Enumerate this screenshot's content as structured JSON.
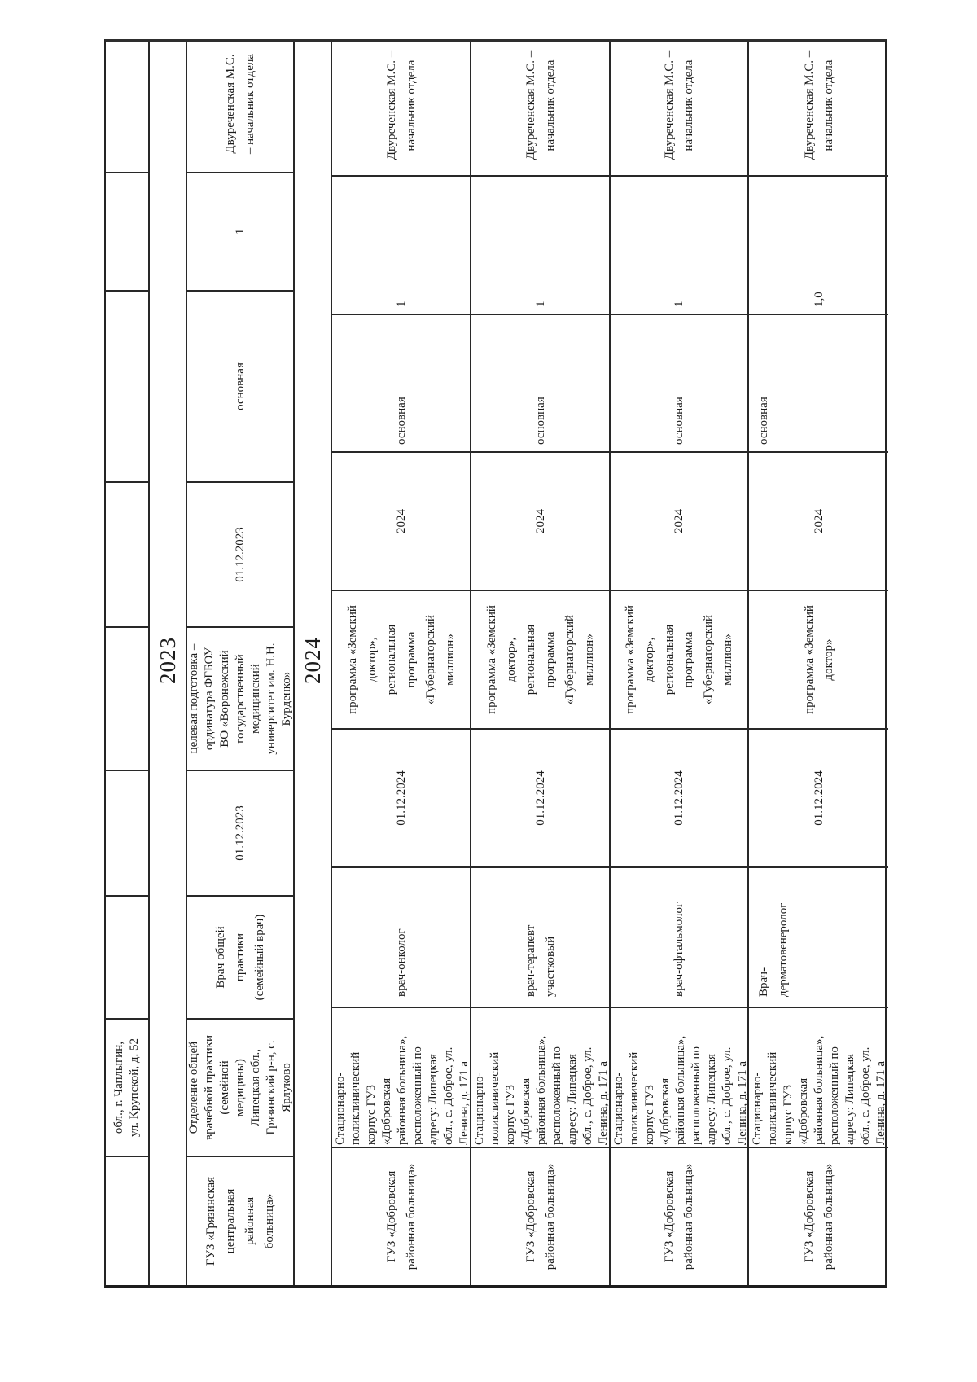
{
  "document": {
    "kind": "scanned rotated vacancy table",
    "orientation": "rotated 90deg ccw, text reads bottom to top",
    "text_color": "#1d1d1d",
    "line_color": "#282828",
    "background": "#ffffff"
  },
  "table": {
    "rows": [
      {
        "type": "data-continuation",
        "cells": {
          "org": "",
          "department": "обл., г. Чаплыгин,\nул. Крупской, д. 52",
          "position": "",
          "vacancy_date": "",
          "program": "",
          "fill_period": "",
          "vacancy_type": "",
          "rate": "",
          "responsible": ""
        }
      },
      {
        "type": "year-header",
        "label": "2023"
      },
      {
        "type": "data",
        "cells": {
          "org": "ГУЗ «Грязинская\nцентральная\nрайонная\nбольница»",
          "department": "Отделение общей\nврачебной практики\n(семейной\nмедицины)\nЛипецкая обл.,\nГрязинский р-н, с.\nЯрлуково",
          "position": "Врач общей\nпрактики\n(семейный врач)",
          "vacancy_date": "01.12.2023",
          "program": "целевая подготовка –\nординатура ФГБОУ\nВО «Воронежский\nгосударственный\nмедицинский\nуниверситет им. Н.Н.\nБурденко»",
          "fill_period": "01.12.2023",
          "vacancy_type": "основная",
          "rate": "1",
          "responsible": "Двуреченская М.С.\n– начальник отдела"
        }
      },
      {
        "type": "year-header",
        "label": "2024"
      },
      {
        "type": "data",
        "cells": {
          "org": "ГУЗ «Добровская\nрайонная больница»",
          "department": "Стационарно-\nполиклинический\nкорпус ГУЗ\n«Добровская\nрайонная больница»,\nрасположенный по\nадресу: Липецкая\nобл., с. Доброе, ул.\nЛенина, д. 171 а",
          "position": "врач-онколог",
          "vacancy_date": "01.12.2024",
          "program": "программа «Земский\nдоктор»,\nрегиональная\nпрограмма\n«Губернаторский\nмиллион»",
          "fill_period": "2024",
          "vacancy_type": "основная",
          "rate": "1",
          "responsible": "Двуреченская М.С. –\nначальник отдела"
        }
      },
      {
        "type": "data",
        "cells": {
          "org": "ГУЗ «Добровская\nрайонная больница»",
          "department": "Стационарно-\nполиклинический\nкорпус ГУЗ\n«Добровская\nрайонная больница»,\nрасположенный по\nадресу: Липецкая\nобл., с. Доброе, ул.\nЛенина, д. 171 а",
          "position": "врач-терапевт\nучастковый",
          "vacancy_date": "01.12.2024",
          "program": "программа «Земский\nдоктор»,\nрегиональная\nпрограмма\n«Губернаторский\nмиллион»",
          "fill_period": "2024",
          "vacancy_type": "основная",
          "rate": "1",
          "responsible": "Двуреченская М.С. –\nначальник отдела"
        }
      },
      {
        "type": "data",
        "cells": {
          "org": "ГУЗ «Добровская\nрайонная больница»",
          "department": "Стационарно-\nполиклинический\nкорпус ГУЗ\n«Добровская\nрайонная больница»,\nрасположенный по\nадресу: Липецкая\nобл., с. Доброе, ул.\nЛенина, д. 171 а",
          "position": "врач-офтальмолог",
          "vacancy_date": "01.12.2024",
          "program": "программа «Земский\nдоктор»,\nрегиональная\nпрограмма\n«Губернаторский\nмиллион»",
          "fill_period": "2024",
          "vacancy_type": "основная",
          "rate": "1",
          "responsible": "Двуреченская М.С. –\nначальник отдела"
        }
      },
      {
        "type": "data",
        "cells": {
          "org": "ГУЗ «Добровская\nрайонная больница»",
          "department": "Стационарно-\nполиклинический\nкорпус ГУЗ\n«Добровская\nрайонная больница»,\nрасположенный по\nадресу: Липецкая\nобл., с. Доброе, ул.\nЛенина, д. 171 а",
          "position": "Врач-\nдерматовенеролог",
          "vacancy_date": "01.12.2024",
          "program": "программа «Земский\nдоктор»",
          "fill_period": "2024",
          "vacancy_type": "основная",
          "rate": "1,0",
          "responsible": "Двуреченская М.С. –\nначальник отдела"
        }
      }
    ]
  }
}
